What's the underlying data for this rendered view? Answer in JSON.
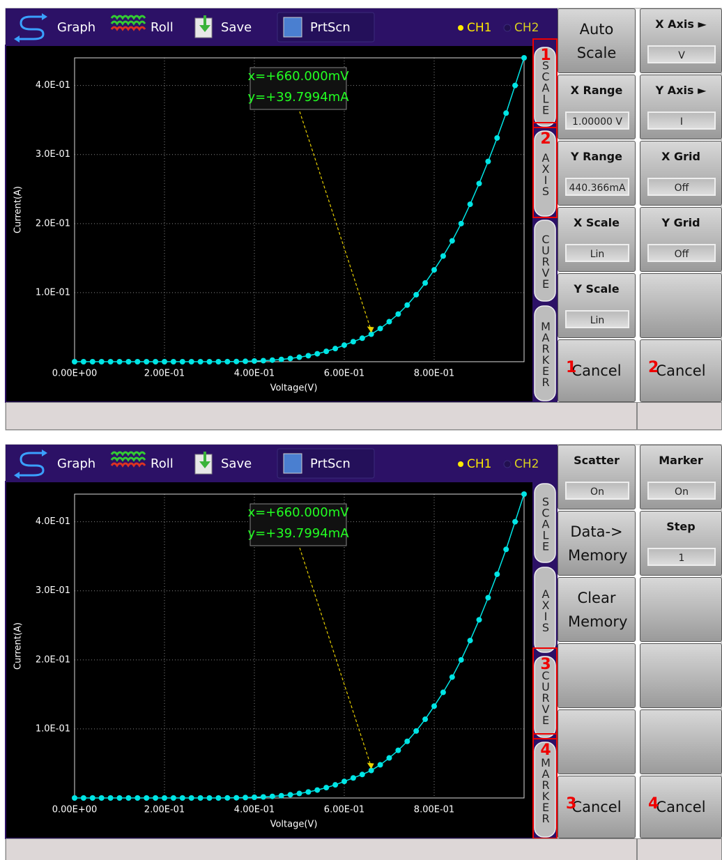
{
  "toolbar": {
    "graph": "Graph",
    "roll": "Roll",
    "save": "Save",
    "prtscn": "PrtScn",
    "ch1": "CH1",
    "ch2": "CH2"
  },
  "tabs": [
    "SCALE",
    "AXIS",
    "CURVE",
    "MARKER"
  ],
  "chart_data": {
    "type": "line",
    "x_label": "Voltage(V)",
    "y_label": "Current(A)",
    "color": "#00e5e5",
    "grid": true,
    "x": [
      0,
      0.02,
      0.04,
      0.06,
      0.08,
      0.1,
      0.12,
      0.14,
      0.16,
      0.18,
      0.2,
      0.22,
      0.24,
      0.26,
      0.28,
      0.3,
      0.32,
      0.34,
      0.36,
      0.38,
      0.4,
      0.42,
      0.44,
      0.46,
      0.48,
      0.5,
      0.52,
      0.54,
      0.56,
      0.58,
      0.6,
      0.62,
      0.64,
      0.66,
      0.68,
      0.7,
      0.72,
      0.74,
      0.76,
      0.78,
      0.8,
      0.82,
      0.84,
      0.86,
      0.88,
      0.9,
      0.92,
      0.94,
      0.96,
      0.98,
      1
    ],
    "values": [
      0,
      0,
      0,
      0,
      0,
      0,
      0,
      0,
      0,
      0,
      0,
      0,
      0,
      0,
      0,
      0,
      0,
      0.0001,
      0.0003,
      0.0006,
      0.001,
      0.0015,
      0.0023,
      0.0033,
      0.0047,
      0.0065,
      0.0087,
      0.0115,
      0.015,
      0.019,
      0.024,
      0.029,
      0.034,
      0.0397994,
      0.048,
      0.058,
      0.069,
      0.082,
      0.097,
      0.114,
      0.133,
      0.153,
      0.175,
      0.2,
      0.228,
      0.258,
      0.29,
      0.324,
      0.36,
      0.4,
      0.44
    ],
    "xlim": [
      0,
      1
    ],
    "ylim": [
      0,
      0.44
    ],
    "xticks": [
      {
        "value": 0,
        "label": "0.00E+00"
      },
      {
        "value": 0.2,
        "label": "2.00E-01"
      },
      {
        "value": 0.4,
        "label": "4.00E-01"
      },
      {
        "value": 0.6,
        "label": "6.00E-01"
      },
      {
        "value": 0.8,
        "label": "8.00E-01"
      }
    ],
    "yticks": [
      {
        "value": 0.1,
        "label": "1.0E-01"
      },
      {
        "value": 0.2,
        "label": "2.0E-01"
      },
      {
        "value": 0.3,
        "label": "3.0E-01"
      },
      {
        "value": 0.4,
        "label": "4.0E-01"
      }
    ],
    "marker": {
      "x": 0.66,
      "y": 0.0397994,
      "x_label": "x=+660.000mV",
      "y_label": "y=+39.7994mA"
    }
  },
  "panels": [
    {
      "tab_callouts": [
        "1",
        "2",
        null,
        null
      ],
      "cancel_callouts": [
        "1",
        "2"
      ],
      "left_keys": [
        {
          "label": "Auto Scale"
        },
        {
          "label": "X Range",
          "value": "1.00000 V"
        },
        {
          "label": "Y Range",
          "value": "440.366mA"
        },
        {
          "label": "X Scale",
          "value": "Lin"
        },
        {
          "label": "Y Scale",
          "value": "Lin"
        },
        {
          "label": "Cancel"
        }
      ],
      "right_keys": [
        {
          "label": "X Axis ►",
          "value": "V"
        },
        {
          "label": "Y Axis ►",
          "value": "I"
        },
        {
          "label": "X Grid",
          "value": "Off"
        },
        {
          "label": "Y Grid",
          "value": "Off"
        },
        null,
        {
          "label": "Cancel"
        }
      ]
    },
    {
      "tab_callouts": [
        null,
        null,
        "3",
        "4"
      ],
      "cancel_callouts": [
        "3",
        "4"
      ],
      "left_keys": [
        {
          "label": "Scatter",
          "value": "On"
        },
        {
          "label": "Data-> Memory"
        },
        {
          "label": "Clear Memory"
        },
        null,
        null,
        {
          "label": "Cancel"
        }
      ],
      "right_keys": [
        {
          "label": "Marker",
          "value": "On"
        },
        {
          "label": "Step",
          "value": "1"
        },
        null,
        null,
        null,
        {
          "label": "Cancel"
        }
      ]
    }
  ]
}
